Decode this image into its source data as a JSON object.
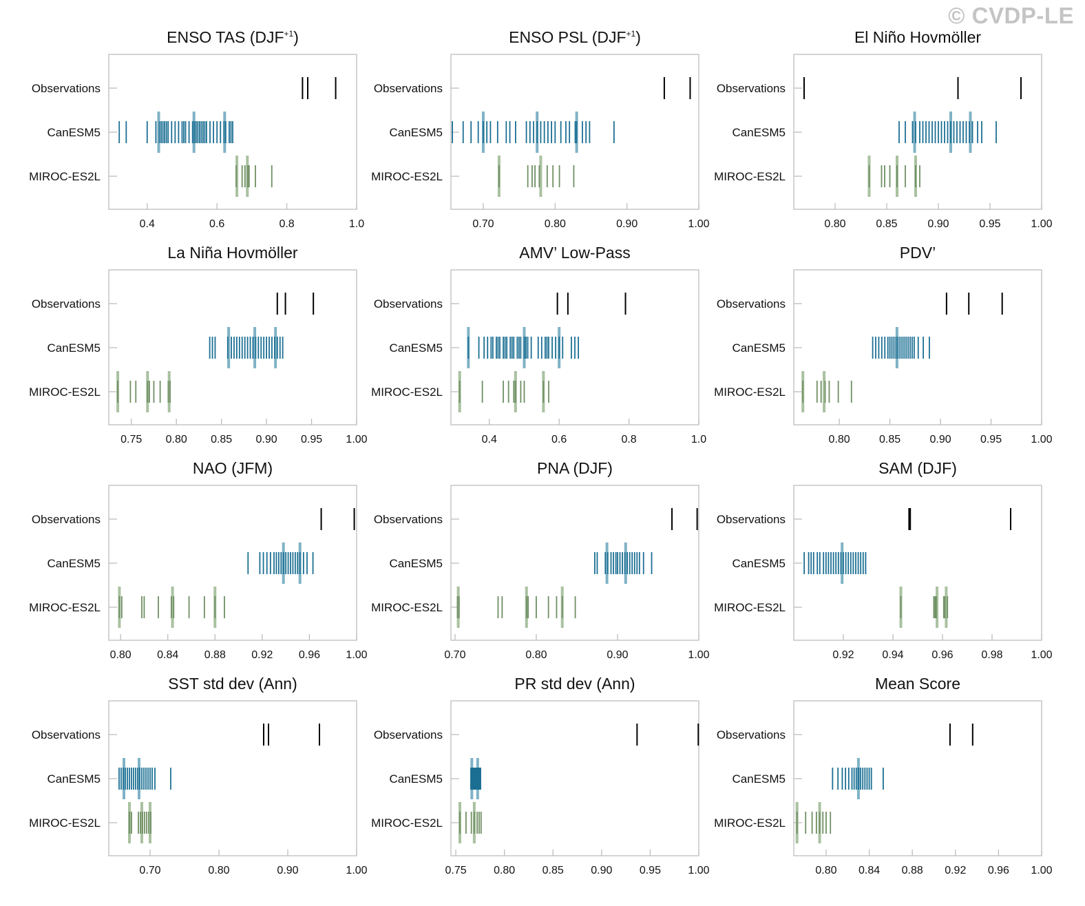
{
  "watermark": "© CVDP-LE",
  "rows": [
    "Observations",
    "CanESM5",
    "MIROC-ES2L"
  ],
  "colors": {
    "observations": "#000000",
    "CanESM5": "#1b6f93",
    "CanESM5_mean": "#7fb2c6",
    "MIROC-ES2L": "#6f8f63",
    "MIROC-ES2L_mean": "#a9c1a0",
    "frame": "#bdbdbd"
  },
  "chart_data": [
    {
      "type": "strip",
      "title": "ENSO TAS (DJF",
      "title_sup": "+1",
      "title_tail": ")",
      "xlim": [
        0.29,
        1.0
      ],
      "ticks": [
        0.4,
        0.6,
        0.8,
        1.0
      ],
      "tick_labels": [
        "0.4",
        "0.6",
        "0.8",
        "1.0"
      ],
      "observations": [
        0.845,
        0.86,
        0.94
      ],
      "CanESM5": [
        0.32,
        0.34,
        0.4,
        0.425,
        0.435,
        0.44,
        0.445,
        0.45,
        0.455,
        0.46,
        0.47,
        0.48,
        0.49,
        0.5,
        0.505,
        0.51,
        0.52,
        0.53,
        0.535,
        0.54,
        0.545,
        0.55,
        0.555,
        0.56,
        0.565,
        0.57,
        0.58,
        0.59,
        0.6,
        0.61,
        0.62,
        0.625,
        0.635,
        0.64,
        0.645
      ],
      "CanESM5_mean": [
        0.433,
        0.534,
        0.622
      ],
      "MIROC-ES2L": [
        0.655,
        0.672,
        0.68,
        0.688,
        0.692,
        0.71,
        0.757
      ],
      "MIROC-ES2L_mean": [
        0.657,
        0.687
      ]
    },
    {
      "type": "strip",
      "title": "ENSO PSL (DJF",
      "title_sup": "+1",
      "title_tail": ")",
      "xlim": [
        0.655,
        1.0
      ],
      "ticks": [
        0.7,
        0.8,
        0.9,
        1.0
      ],
      "tick_labels": [
        "0.70",
        "0.80",
        "0.90",
        "1.00"
      ],
      "observations": [
        0.952,
        0.988
      ],
      "CanESM5": [
        0.657,
        0.672,
        0.683,
        0.693,
        0.7,
        0.705,
        0.71,
        0.72,
        0.732,
        0.737,
        0.745,
        0.76,
        0.765,
        0.77,
        0.775,
        0.78,
        0.785,
        0.79,
        0.795,
        0.8,
        0.808,
        0.815,
        0.82,
        0.828,
        0.83,
        0.838,
        0.843,
        0.848,
        0.882
      ],
      "CanESM5_mean": [
        0.7,
        0.775,
        0.83
      ],
      "MIROC-ES2L": [
        0.722,
        0.762,
        0.768,
        0.772,
        0.778,
        0.789,
        0.797,
        0.806,
        0.826
      ],
      "MIROC-ES2L_mean": [
        0.722,
        0.78
      ]
    },
    {
      "type": "strip",
      "title": "El Niño Hovmöller",
      "title_sup": "",
      "title_tail": "",
      "xlim": [
        0.76,
        1.0
      ],
      "ticks": [
        0.8,
        0.85,
        0.9,
        0.95,
        1.0
      ],
      "tick_labels": [
        "0.80",
        "0.85",
        "0.90",
        "0.95",
        "1.00"
      ],
      "observations": [
        0.77,
        0.919,
        0.98
      ],
      "CanESM5": [
        0.862,
        0.868,
        0.875,
        0.878,
        0.882,
        0.885,
        0.888,
        0.891,
        0.894,
        0.897,
        0.9,
        0.903,
        0.906,
        0.909,
        0.912,
        0.915,
        0.918,
        0.921,
        0.924,
        0.927,
        0.93,
        0.933,
        0.938,
        0.942,
        0.956
      ],
      "CanESM5_mean": [
        0.877,
        0.912,
        0.931
      ],
      "MIROC-ES2L": [
        0.833,
        0.845,
        0.848,
        0.853,
        0.86,
        0.868,
        0.878,
        0.882
      ],
      "MIROC-ES2L_mean": [
        0.833,
        0.86,
        0.878
      ]
    },
    {
      "type": "strip",
      "title": "La Niña Hovmöller",
      "title_sup": "",
      "title_tail": "",
      "xlim": [
        0.725,
        1.0
      ],
      "ticks": [
        0.75,
        0.8,
        0.85,
        0.9,
        0.95,
        1.0
      ],
      "tick_labels": [
        "0.75",
        "0.80",
        "0.85",
        "0.90",
        "0.95",
        "1.00"
      ],
      "observations": [
        0.912,
        0.921,
        0.952
      ],
      "CanESM5": [
        0.837,
        0.84,
        0.843,
        0.857,
        0.861,
        0.864,
        0.867,
        0.87,
        0.873,
        0.876,
        0.879,
        0.882,
        0.885,
        0.888,
        0.891,
        0.894,
        0.897,
        0.9,
        0.903,
        0.906,
        0.909,
        0.912,
        0.915,
        0.918
      ],
      "CanESM5_mean": [
        0.858,
        0.887,
        0.91
      ],
      "MIROC-ES2L": [
        0.735,
        0.749,
        0.755,
        0.768,
        0.77,
        0.775,
        0.782,
        0.791,
        0.793
      ],
      "MIROC-ES2L_mean": [
        0.735,
        0.768,
        0.792
      ]
    },
    {
      "type": "strip",
      "title": "AMV’ Low-Pass",
      "title_sup": "",
      "title_tail": "",
      "xlim": [
        0.29,
        1.0
      ],
      "ticks": [
        0.4,
        0.6,
        0.8,
        1.0
      ],
      "tick_labels": [
        "0.4",
        "0.6",
        "0.8",
        "1.0"
      ],
      "observations": [
        0.595,
        0.625,
        0.79
      ],
      "CanESM5": [
        0.34,
        0.37,
        0.385,
        0.395,
        0.405,
        0.41,
        0.42,
        0.425,
        0.43,
        0.44,
        0.445,
        0.45,
        0.46,
        0.465,
        0.47,
        0.48,
        0.485,
        0.49,
        0.5,
        0.505,
        0.51,
        0.52,
        0.54,
        0.55,
        0.56,
        0.565,
        0.57,
        0.58,
        0.59,
        0.6,
        0.61,
        0.635,
        0.645,
        0.655
      ],
      "CanESM5_mean": [
        0.34,
        0.5,
        0.6
      ],
      "MIROC-ES2L": [
        0.315,
        0.38,
        0.44,
        0.455,
        0.47,
        0.475,
        0.49,
        0.5,
        0.555,
        0.57
      ],
      "MIROC-ES2L_mean": [
        0.315,
        0.475,
        0.555
      ]
    },
    {
      "type": "strip",
      "title": "PDV’",
      "title_sup": "",
      "title_tail": "",
      "xlim": [
        0.755,
        1.0
      ],
      "ticks": [
        0.8,
        0.85,
        0.9,
        0.95,
        1.0
      ],
      "tick_labels": [
        "0.80",
        "0.85",
        "0.90",
        "0.95",
        "1.00"
      ],
      "observations": [
        0.906,
        0.928,
        0.961
      ],
      "CanESM5": [
        0.833,
        0.836,
        0.839,
        0.842,
        0.845,
        0.848,
        0.85,
        0.852,
        0.854,
        0.856,
        0.858,
        0.86,
        0.862,
        0.864,
        0.866,
        0.868,
        0.87,
        0.872,
        0.874,
        0.878,
        0.883,
        0.889
      ],
      "CanESM5_mean": [
        0.857
      ],
      "MIROC-ES2L": [
        0.764,
        0.778,
        0.782,
        0.786,
        0.79,
        0.799,
        0.812
      ],
      "MIROC-ES2L_mean": [
        0.764,
        0.785
      ]
    },
    {
      "type": "strip",
      "title": "NAO (JFM)",
      "title_sup": "",
      "title_tail": "",
      "xlim": [
        0.79,
        1.0
      ],
      "ticks": [
        0.8,
        0.84,
        0.88,
        0.92,
        0.96,
        1.0
      ],
      "tick_labels": [
        "0.80",
        "0.84",
        "0.88",
        "0.92",
        "0.96",
        "1.00"
      ],
      "observations": [
        0.97,
        0.998
      ],
      "CanESM5": [
        0.908,
        0.918,
        0.921,
        0.924,
        0.927,
        0.93,
        0.932,
        0.934,
        0.936,
        0.938,
        0.94,
        0.942,
        0.944,
        0.946,
        0.948,
        0.95,
        0.952,
        0.955,
        0.958,
        0.963
      ],
      "CanESM5_mean": [
        0.938,
        0.952
      ],
      "MIROC-ES2L": [
        0.799,
        0.801,
        0.818,
        0.82,
        0.832,
        0.843,
        0.845,
        0.858,
        0.871,
        0.88,
        0.888
      ],
      "MIROC-ES2L_mean": [
        0.799,
        0.844,
        0.88
      ]
    },
    {
      "type": "strip",
      "title": "PNA (DJF)",
      "title_sup": "",
      "title_tail": "",
      "xlim": [
        0.695,
        1.0
      ],
      "ticks": [
        0.7,
        0.8,
        0.9,
        1.0
      ],
      "tick_labels": [
        "0.70",
        "0.80",
        "0.90",
        "1.00"
      ],
      "observations": [
        0.967,
        0.998
      ],
      "CanESM5": [
        0.872,
        0.875,
        0.885,
        0.888,
        0.892,
        0.895,
        0.898,
        0.9,
        0.903,
        0.906,
        0.909,
        0.912,
        0.915,
        0.918,
        0.921,
        0.924,
        0.927,
        0.932,
        0.942
      ],
      "CanESM5_mean": [
        0.887,
        0.91
      ],
      "MIROC-ES2L": [
        0.703,
        0.705,
        0.753,
        0.758,
        0.788,
        0.79,
        0.8,
        0.815,
        0.825,
        0.832,
        0.848
      ],
      "MIROC-ES2L_mean": [
        0.704,
        0.788,
        0.832
      ]
    },
    {
      "type": "strip",
      "title": "SAM (DJF)",
      "title_sup": "",
      "title_tail": "",
      "xlim": [
        0.9,
        1.0
      ],
      "ticks": [
        0.92,
        0.94,
        0.96,
        0.98,
        1.0
      ],
      "tick_labels": [
        "0.92",
        "0.94",
        "0.96",
        "0.98",
        "1.00"
      ],
      "observations": [
        0.9465,
        0.947,
        0.9875
      ],
      "CanESM5": [
        0.9042,
        0.906,
        0.907,
        0.908,
        0.9095,
        0.9105,
        0.912,
        0.913,
        0.914,
        0.915,
        0.916,
        0.917,
        0.918,
        0.919,
        0.92,
        0.921,
        0.922,
        0.923,
        0.924,
        0.925,
        0.926,
        0.927,
        0.928,
        0.929
      ],
      "CanESM5_mean": [
        0.9195
      ],
      "MIROC-ES2L": [
        0.9432,
        0.9565,
        0.957,
        0.9575,
        0.9605,
        0.961,
        0.962
      ],
      "MIROC-ES2L_mean": [
        0.9432,
        0.9578,
        0.9615
      ]
    },
    {
      "type": "strip",
      "title": "SST std dev (Ann)",
      "title_sup": "",
      "title_tail": "",
      "xlim": [
        0.64,
        1.0
      ],
      "ticks": [
        0.7,
        0.8,
        0.9,
        1.0
      ],
      "tick_labels": [
        "0.70",
        "0.80",
        "0.90",
        "1.00"
      ],
      "observations": [
        0.865,
        0.872,
        0.946
      ],
      "CanESM5": [
        0.655,
        0.658,
        0.661,
        0.664,
        0.667,
        0.67,
        0.673,
        0.676,
        0.679,
        0.682,
        0.685,
        0.688,
        0.691,
        0.694,
        0.697,
        0.7,
        0.703,
        0.707,
        0.73
      ],
      "CanESM5_mean": [
        0.662,
        0.684
      ],
      "MIROC-ES2L": [
        0.67,
        0.673,
        0.683,
        0.686,
        0.689,
        0.692,
        0.695,
        0.698,
        0.701
      ],
      "MIROC-ES2L_mean": [
        0.67,
        0.688,
        0.7
      ]
    },
    {
      "type": "strip",
      "title": "PR std dev (Ann)",
      "title_sup": "",
      "title_tail": "",
      "xlim": [
        0.745,
        1.0
      ],
      "ticks": [
        0.75,
        0.8,
        0.85,
        0.9,
        0.95,
        1.0
      ],
      "tick_labels": [
        "0.75",
        "0.80",
        "0.85",
        "0.90",
        "0.95",
        "1.00"
      ],
      "observations": [
        0.9365,
        0.9995
      ],
      "CanESM5": [
        0.7655,
        0.7665,
        0.7675,
        0.7685,
        0.7695,
        0.7705,
        0.7715,
        0.7725,
        0.7735,
        0.7745,
        0.7755
      ],
      "CanESM5_mean": [
        0.7665,
        0.7725
      ],
      "MIROC-ES2L": [
        0.7542,
        0.7605,
        0.766,
        0.769,
        0.772,
        0.774,
        0.776
      ],
      "MIROC-ES2L_mean": [
        0.7542,
        0.769
      ]
    },
    {
      "type": "strip",
      "title": "Mean Score",
      "title_sup": "",
      "title_tail": "",
      "xlim": [
        0.77,
        1.0
      ],
      "ticks": [
        0.8,
        0.84,
        0.88,
        0.92,
        0.96,
        1.0
      ],
      "tick_labels": [
        "0.80",
        "0.84",
        "0.88",
        "0.92",
        "0.96",
        "1.00"
      ],
      "observations": [
        0.915,
        0.936
      ],
      "CanESM5": [
        0.806,
        0.811,
        0.815,
        0.818,
        0.821,
        0.824,
        0.826,
        0.828,
        0.83,
        0.832,
        0.834,
        0.836,
        0.838,
        0.84,
        0.842,
        0.853
      ],
      "CanESM5_mean": [
        0.83
      ],
      "MIROC-ES2L": [
        0.773,
        0.781,
        0.787,
        0.791,
        0.794,
        0.797,
        0.8,
        0.804
      ],
      "MIROC-ES2L_mean": [
        0.773,
        0.794
      ]
    }
  ]
}
